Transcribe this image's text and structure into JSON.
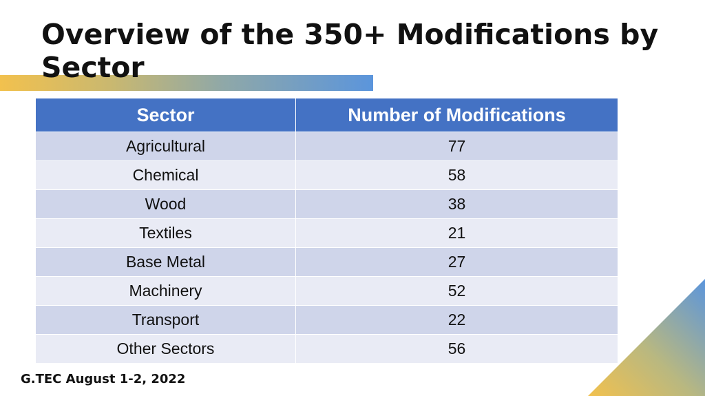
{
  "slide": {
    "title": "Overview of the 350+ Modifications by Sector",
    "footer": "G.TEC August 1-2, 2022"
  },
  "table": {
    "headers": [
      "Sector",
      "Number of Modifications"
    ],
    "rows": [
      {
        "sector": "Agricultural",
        "count": "77"
      },
      {
        "sector": "Chemical",
        "count": "58"
      },
      {
        "sector": "Wood",
        "count": "38"
      },
      {
        "sector": "Textiles",
        "count": "21"
      },
      {
        "sector": "Base Metal",
        "count": "27"
      },
      {
        "sector": "Machinery",
        "count": "52"
      },
      {
        "sector": "Transport",
        "count": "22"
      },
      {
        "sector": "Other Sectors",
        "count": "56"
      }
    ]
  },
  "colors": {
    "header_bg": "#4472c4",
    "row_odd": "#cfd5ea",
    "row_even": "#e9ebf5",
    "accent_start": "#f2c14e",
    "accent_end": "#5b95dc"
  }
}
